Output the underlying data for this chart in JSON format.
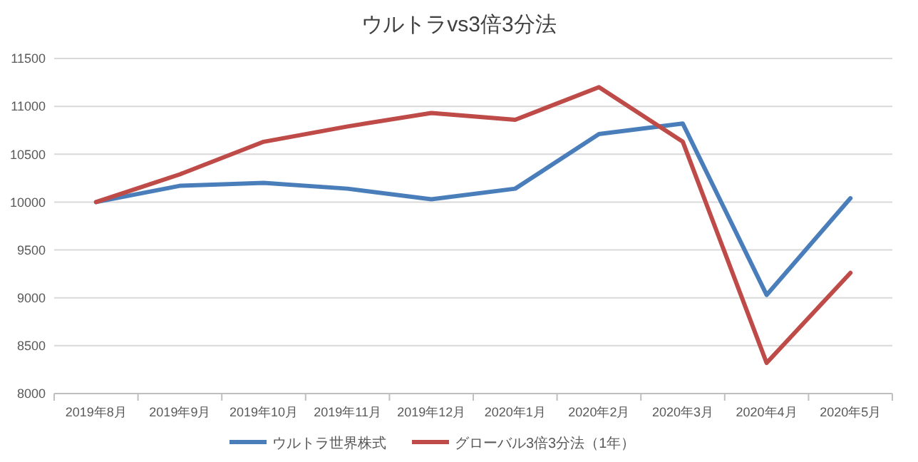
{
  "chart_data": {
    "type": "line",
    "title": "ウルトラvs3倍3分法",
    "categories": [
      "2019年8月",
      "2019年9月",
      "2019年10月",
      "2019年11月",
      "2019年12月",
      "2020年1月",
      "2020年2月",
      "2020年3月",
      "2020年4月",
      "2020年5月"
    ],
    "series": [
      {
        "name": "ウルトラ世界株式",
        "color": "#4a7ebb",
        "values": [
          10000,
          10170,
          10200,
          10140,
          10030,
          10140,
          10710,
          10820,
          9030,
          10040
        ]
      },
      {
        "name": "グローバル3倍3分法（1年）",
        "color": "#be4b48",
        "values": [
          10000,
          10290,
          10630,
          10790,
          10930,
          10860,
          11200,
          10630,
          8320,
          9260
        ]
      }
    ],
    "ylim": [
      8000,
      11500
    ],
    "yticks": [
      8000,
      8500,
      9000,
      9500,
      10000,
      10500,
      11000,
      11500
    ],
    "grid": "y",
    "legend": "bottom",
    "marker": "none",
    "line_style": "solid"
  }
}
